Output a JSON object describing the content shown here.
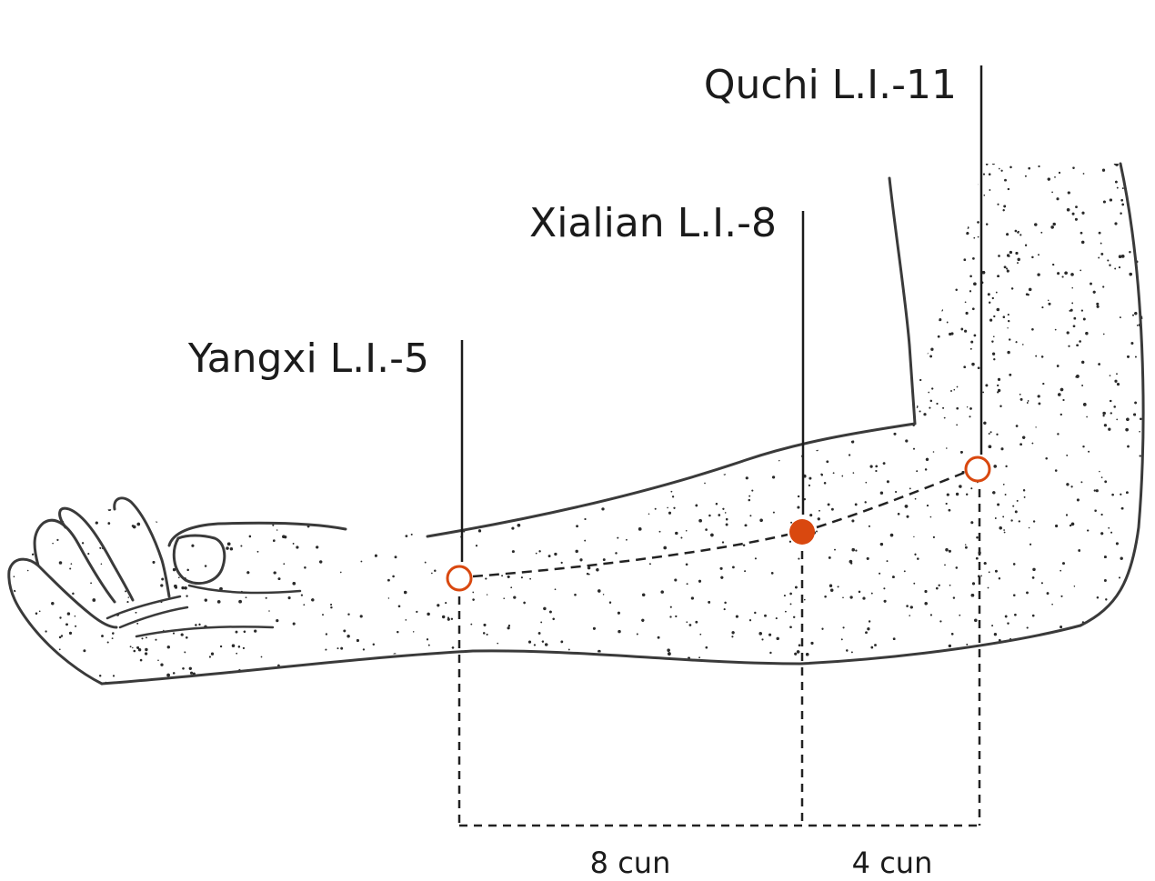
{
  "points": {
    "quchi": {
      "label": "Quchi L.I.-11",
      "marker": "open"
    },
    "xialian": {
      "label": "Xialian L.I.-8",
      "marker": "filled"
    },
    "yangxi": {
      "label": "Yangxi L.I.-5",
      "marker": "open"
    }
  },
  "measurements": {
    "left": "8 cun",
    "right": "4 cun"
  },
  "colors": {
    "point": "#d9480f",
    "ink": "#1b1b1b"
  }
}
